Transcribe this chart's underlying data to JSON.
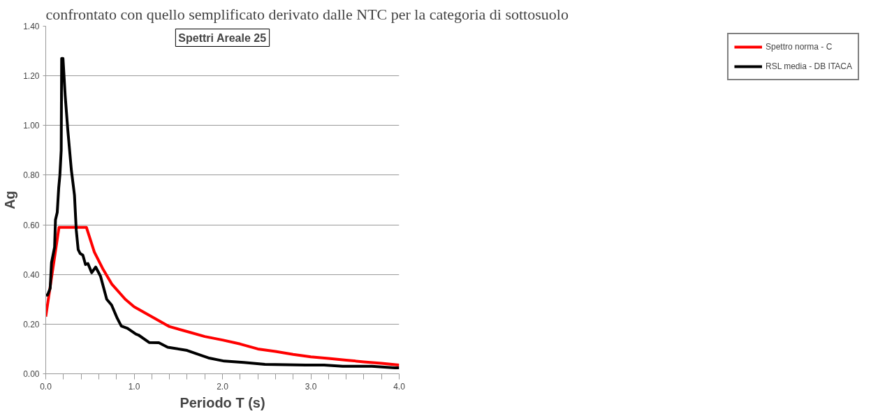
{
  "chart_data": {
    "type": "line",
    "title": "Spettri Areale 25",
    "xlabel": "Periodo T (s)",
    "ylabel": "Ag",
    "annotations": [
      "confrontato con quello semplificato derivato dalle NTC per la categoria di sottosuolo"
    ],
    "xlim": [
      0,
      4.0
    ],
    "ylim": [
      0,
      1.4
    ],
    "xticks": [
      {
        "value": 0,
        "label": "0.0"
      },
      {
        "value": 0.2,
        "label": null
      },
      {
        "value": 0.4,
        "label": null
      },
      {
        "value": 0.6,
        "label": null
      },
      {
        "value": 0.8,
        "label": null
      },
      {
        "value": 1.0,
        "label": "1.0"
      },
      {
        "value": 1.2,
        "label": null
      },
      {
        "value": 1.4,
        "label": null
      },
      {
        "value": 1.6,
        "label": null
      },
      {
        "value": 1.8,
        "label": null
      },
      {
        "value": 2.0,
        "label": "2.0"
      },
      {
        "value": 2.2,
        "label": null
      },
      {
        "value": 2.4,
        "label": null
      },
      {
        "value": 2.6,
        "label": null
      },
      {
        "value": 2.8,
        "label": null
      },
      {
        "value": 3.0,
        "label": "3.0"
      },
      {
        "value": 3.2,
        "label": null
      },
      {
        "value": 3.4,
        "label": null
      },
      {
        "value": 3.6,
        "label": null
      },
      {
        "value": 3.8,
        "label": null
      },
      {
        "value": 4.0,
        "label": "4.0"
      }
    ],
    "yticks": [
      {
        "value": 0,
        "label": "0.00"
      },
      {
        "value": 0.2,
        "label": "0.20"
      },
      {
        "value": 0.4,
        "label": "0.40"
      },
      {
        "value": 0.6,
        "label": "0.60"
      },
      {
        "value": 0.8,
        "label": "0.80"
      },
      {
        "value": 1.0,
        "label": "1.00"
      },
      {
        "value": 1.2,
        "label": "1.20"
      },
      {
        "value": 1.4,
        "label": "1.40"
      }
    ],
    "grid": "y",
    "legend": "right",
    "marker": "none",
    "line_style": "solid",
    "series": [
      {
        "name": "Spettro norma - C",
        "color": "#ff0000",
        "x": [
          0,
          0.15,
          0.46,
          0.55,
          0.65,
          0.75,
          0.9,
          1.0,
          1.2,
          1.4,
          1.6,
          1.8,
          2.0,
          2.2,
          2.4,
          2.6,
          2.8,
          3.0,
          3.2,
          3.4,
          3.6,
          3.8,
          4.0
        ],
        "values": [
          0.23,
          0.59,
          0.59,
          0.49,
          0.42,
          0.36,
          0.3,
          0.27,
          0.23,
          0.19,
          0.17,
          0.15,
          0.136,
          0.12,
          0.1,
          0.09,
          0.078,
          0.068,
          0.062,
          0.055,
          0.048,
          0.042,
          0.035
        ]
      },
      {
        "name": "RSL media - DB ITACA",
        "color": "#000000",
        "x": [
          0.003,
          0.02,
          0.05,
          0.065,
          0.1,
          0.11,
          0.13,
          0.147,
          0.16,
          0.175,
          0.18,
          0.195,
          0.22,
          0.25,
          0.29,
          0.325,
          0.345,
          0.367,
          0.39,
          0.42,
          0.45,
          0.477,
          0.52,
          0.565,
          0.62,
          0.69,
          0.745,
          0.81,
          0.855,
          0.925,
          1.02,
          1.05,
          1.17,
          1.28,
          1.38,
          1.6,
          1.84,
          2.02,
          2.24,
          2.48,
          2.94,
          3.15,
          3.36,
          3.69,
          3.95,
          4.0
        ],
        "values": [
          0.317,
          0.317,
          0.344,
          0.447,
          0.51,
          0.62,
          0.65,
          0.75,
          0.8,
          0.9,
          1.27,
          1.27,
          1.12,
          0.98,
          0.82,
          0.72,
          0.58,
          0.5,
          0.484,
          0.478,
          0.44,
          0.444,
          0.407,
          0.43,
          0.393,
          0.3,
          0.277,
          0.223,
          0.192,
          0.183,
          0.16,
          0.156,
          0.126,
          0.125,
          0.107,
          0.094,
          0.064,
          0.051,
          0.046,
          0.038,
          0.035,
          0.035,
          0.03,
          0.03,
          0.024,
          0.024
        ]
      }
    ]
  }
}
